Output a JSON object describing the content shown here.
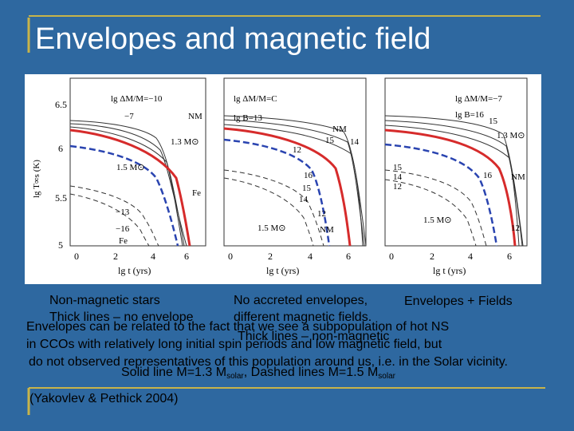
{
  "slide": {
    "title": "Envelopes and magnetic field",
    "label_nonmagnetic": "Non-magnetic stars",
    "label_no_accreted": "No accreted envelopes,",
    "label_env_fields": "Envelopes + Fields",
    "label_thick_no_env": "Thick lines – no envelope",
    "label_diff_fields": "different magnetic fields.",
    "label_thick_nonmag": "Thick lines – non-magnetic",
    "body_line1": "Envelopes can be related to the fact that we see a subpopulation of hot NS",
    "body_line2": "in CCOs with relatively long initial spin periods and low magnetic field, but",
    "body_line3": "do not observed representatives of this population around us, i.e. in the Solar vicinity.",
    "solid_prefix": "Solid line M=1.3 M",
    "solid_sub": "solar",
    "dashed_prefix": ", Dashed lines M=1.5 M",
    "dashed_sub": "solar",
    "citation": "(Yakovlev & Pethick 2004)"
  },
  "figure": {
    "y_axis_label": "lg T∞s (K)",
    "x_axis_label": "lg t  (yrs)",
    "y_ticks": [
      "6.5",
      "6",
      "5.5",
      "5"
    ],
    "x_ticks": [
      "0",
      "2",
      "4",
      "6"
    ],
    "panel1": [
      "lg ΔM/M=−10",
      "−7",
      "NM",
      "1.3 M⊙",
      "1.5 M⊙",
      "Fe",
      "−13",
      "−16",
      "Fe"
    ],
    "panel2": [
      "lg ΔM/M=C",
      "lg B=13",
      "NM",
      "15",
      "14",
      "12",
      "16",
      "15",
      "14",
      "12",
      "NM",
      "1.5 M⊙"
    ],
    "panel3": [
      "lg ΔM/M=−7",
      "lg B=16",
      "15",
      "1.3 M⊙",
      "15",
      "14",
      "12",
      "16",
      "NM",
      "1.5 M⊙",
      "12"
    ]
  }
}
